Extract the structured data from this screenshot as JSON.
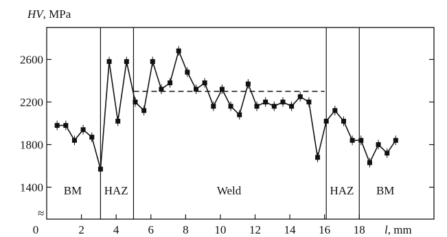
{
  "chart_data": {
    "type": "line",
    "ylabel_var": "HV",
    "ylabel_unit": ", MPa",
    "xlabel_var": "l",
    "xlabel_unit": ", mm",
    "break_symbol": "≈",
    "xlim": [
      0,
      22.3
    ],
    "ylim": [
      1100,
      2900
    ],
    "x_ticks": [
      {
        "value": 0,
        "label": "0"
      },
      {
        "value": 2,
        "label": "2"
      },
      {
        "value": 4,
        "label": "4"
      },
      {
        "value": 6,
        "label": "6"
      },
      {
        "value": 8,
        "label": "8"
      },
      {
        "value": 10,
        "label": "10"
      },
      {
        "value": 12,
        "label": "12"
      },
      {
        "value": 14,
        "label": "14"
      },
      {
        "value": 16,
        "label": "16"
      },
      {
        "value": 18,
        "label": "18"
      }
    ],
    "y_ticks": [
      {
        "value": 1400,
        "label": "1400"
      },
      {
        "value": 1800,
        "label": "1800"
      },
      {
        "value": 2200,
        "label": "2200"
      },
      {
        "value": 2600,
        "label": "2600"
      }
    ],
    "boundaries": [
      3.1,
      5.0,
      16.1,
      18.0
    ],
    "regions": [
      {
        "label": "BM",
        "x": 1.5
      },
      {
        "label": "HAZ",
        "x": 4.0
      },
      {
        "label": "Weld",
        "x": 10.5
      },
      {
        "label": "HAZ",
        "x": 17.0
      },
      {
        "label": "BM",
        "x": 19.5
      }
    ],
    "reference_line": {
      "y": 2300,
      "x_start": 5.0,
      "x_end": 16.0
    },
    "series": [
      {
        "points": [
          [
            0.6,
            1980
          ],
          [
            1.1,
            1980
          ],
          [
            1.6,
            1840
          ],
          [
            2.1,
            1940
          ],
          [
            2.6,
            1870
          ],
          [
            3.1,
            1570
          ],
          [
            3.6,
            2580
          ],
          [
            4.1,
            2020
          ],
          [
            4.6,
            2580
          ],
          [
            5.1,
            2200
          ],
          [
            5.6,
            2120
          ],
          [
            6.1,
            2580
          ],
          [
            6.6,
            2320
          ],
          [
            7.1,
            2380
          ],
          [
            7.6,
            2680
          ],
          [
            8.1,
            2480
          ],
          [
            8.6,
            2320
          ],
          [
            9.1,
            2380
          ],
          [
            9.6,
            2160
          ],
          [
            10.1,
            2320
          ],
          [
            10.6,
            2160
          ],
          [
            11.1,
            2080
          ],
          [
            11.6,
            2370
          ],
          [
            12.1,
            2160
          ],
          [
            12.6,
            2200
          ],
          [
            13.1,
            2160
          ],
          [
            13.6,
            2200
          ],
          [
            14.1,
            2160
          ],
          [
            14.6,
            2250
          ],
          [
            15.1,
            2200
          ],
          [
            15.6,
            1680
          ],
          [
            16.1,
            2020
          ],
          [
            16.6,
            2120
          ],
          [
            17.1,
            2020
          ],
          [
            17.6,
            1840
          ],
          [
            18.1,
            1840
          ],
          [
            18.6,
            1630
          ],
          [
            19.1,
            1800
          ],
          [
            19.6,
            1720
          ],
          [
            20.1,
            1840
          ]
        ]
      }
    ]
  }
}
